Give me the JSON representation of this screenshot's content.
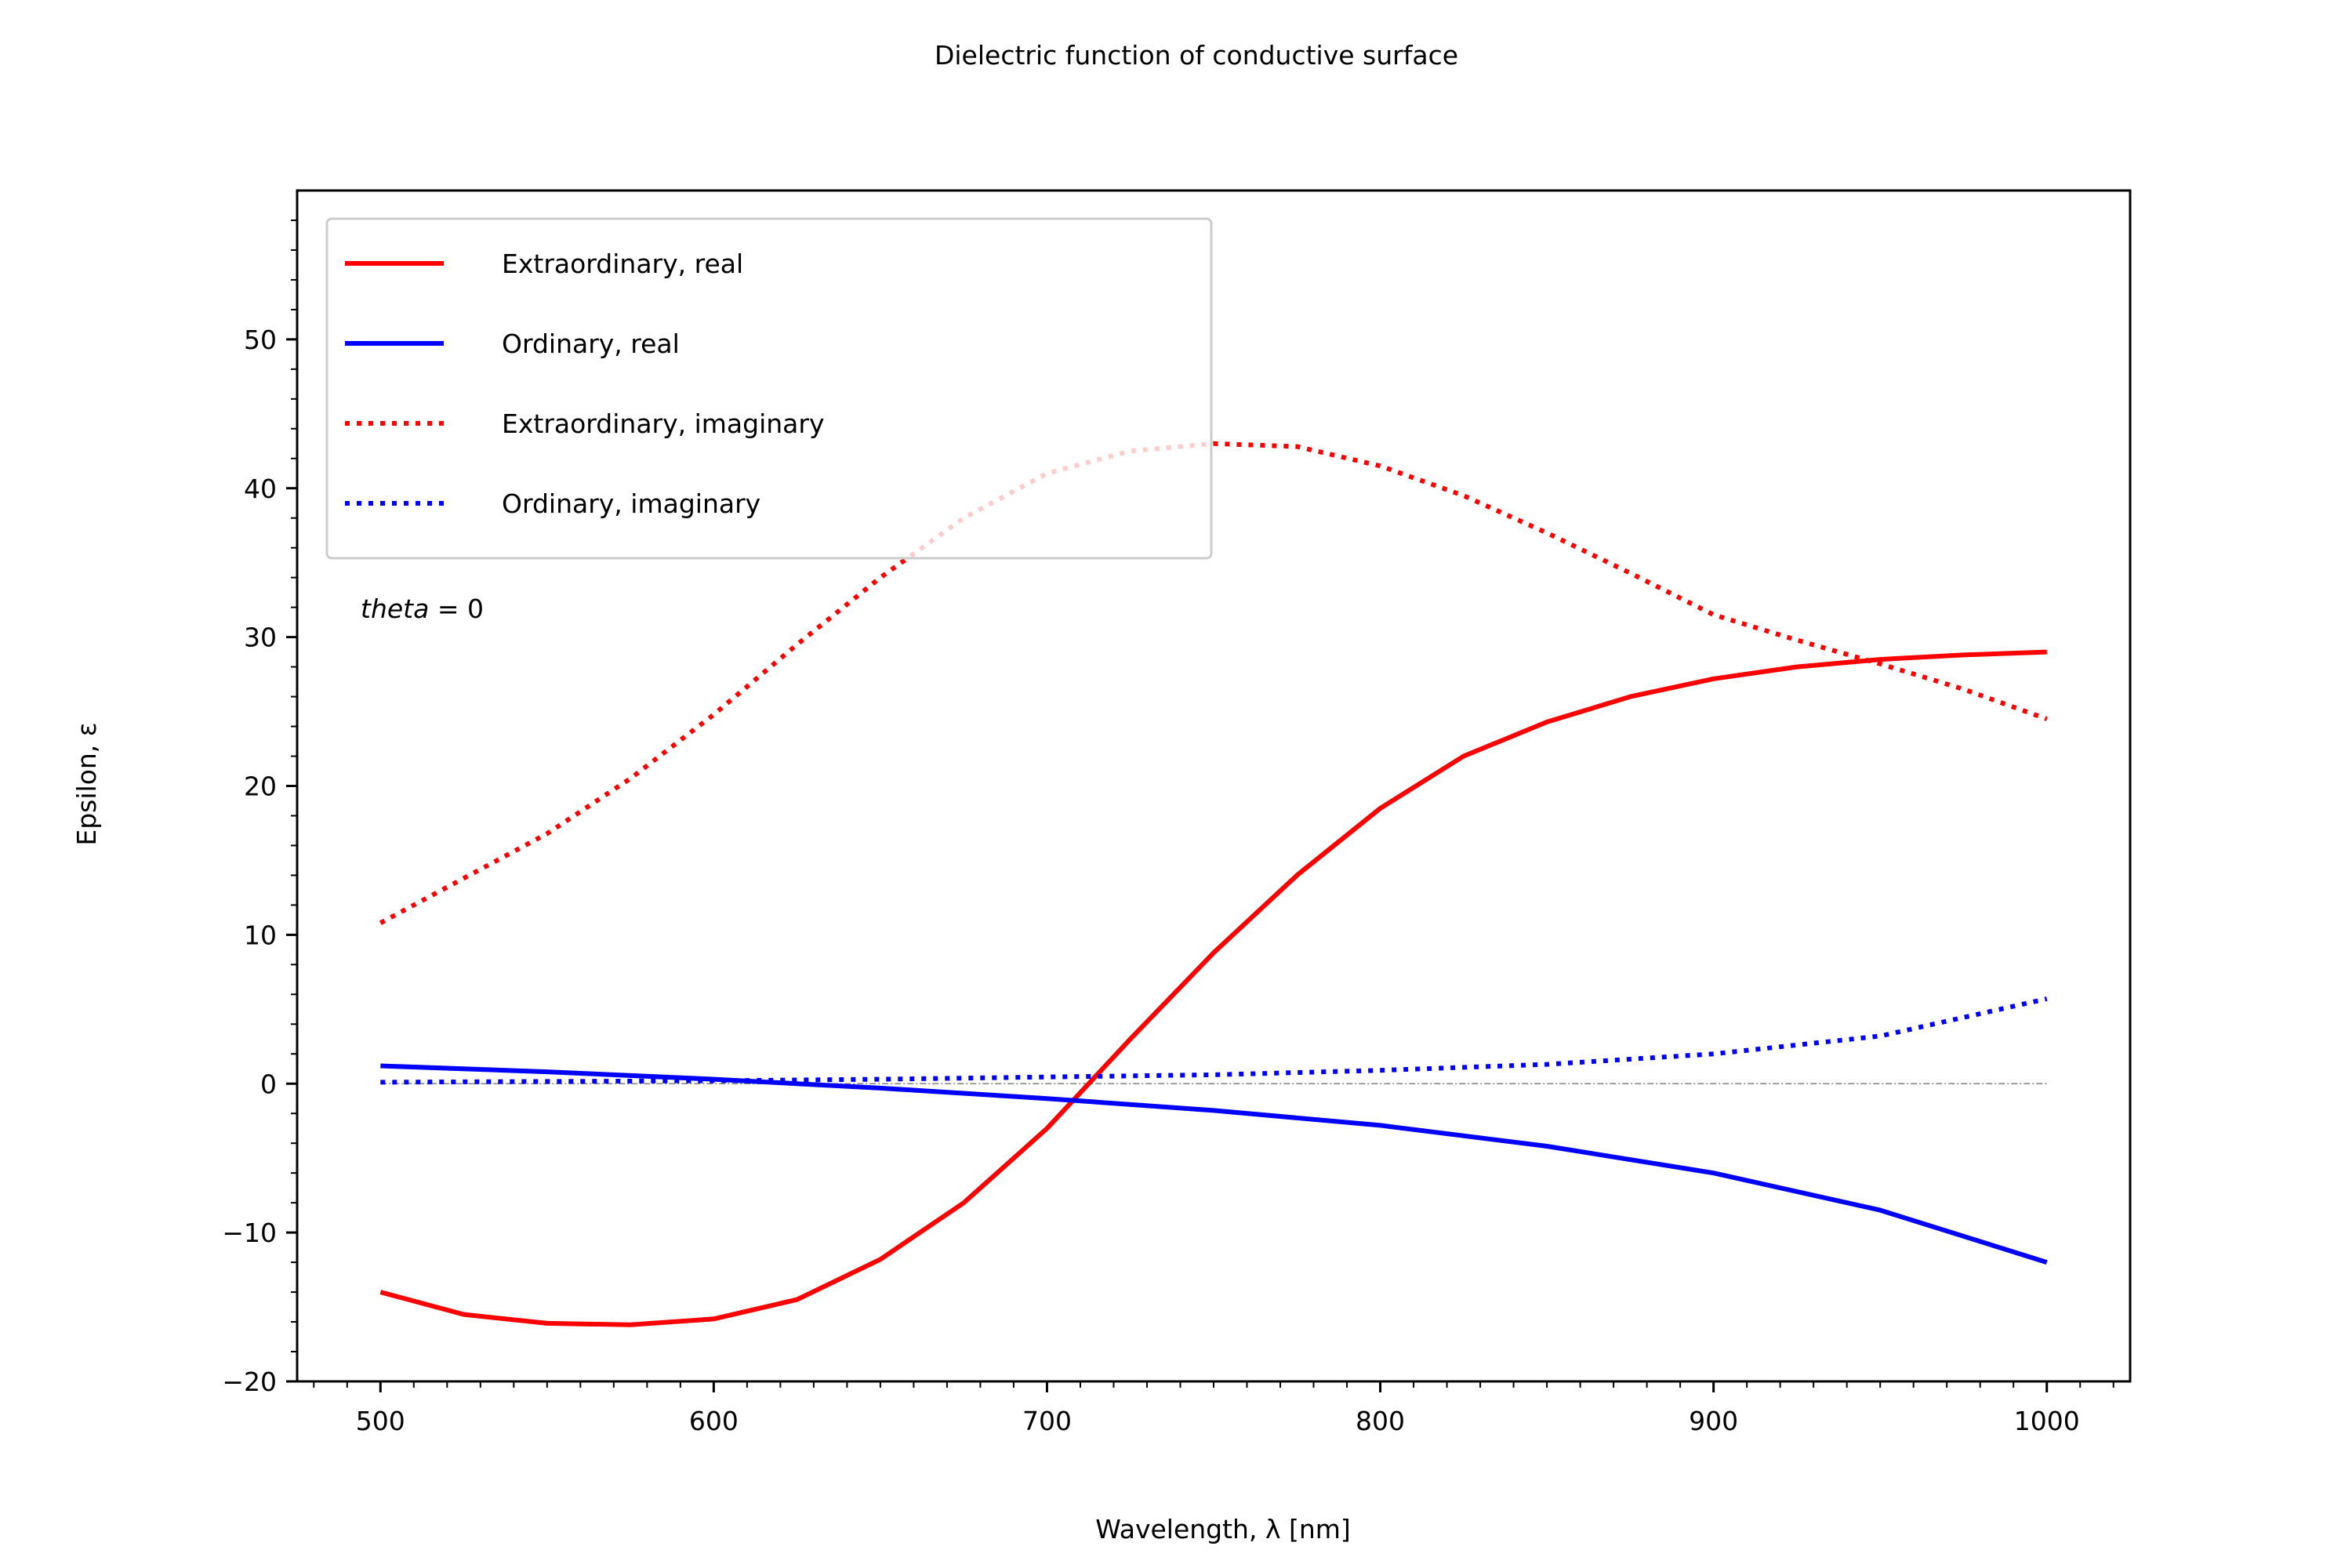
{
  "chart_data": {
    "type": "line",
    "title": "Dielectric function of conductive surface",
    "xlabel": "Wavelength, λ [nm]",
    "ylabel": "Epsilon, ε",
    "xlim": [
      475,
      1025
    ],
    "ylim": [
      -20,
      60
    ],
    "xticks": [
      500,
      600,
      700,
      800,
      900,
      1000
    ],
    "yticks": [
      -20,
      -10,
      0,
      10,
      20,
      30,
      40,
      50
    ],
    "ytick_labels": [
      "−20",
      "−10",
      "0",
      "10",
      "20",
      "30",
      "40",
      "50"
    ],
    "grid": false,
    "legend_position": "top-left",
    "annotation": {
      "italic": "theta",
      "rest": " = 0"
    },
    "zero_line": true,
    "series": [
      {
        "name": "Extraordinary, real",
        "color": "#ff0000",
        "style": "solid",
        "x": [
          500,
          525,
          550,
          575,
          600,
          625,
          650,
          675,
          700,
          725,
          750,
          775,
          800,
          825,
          850,
          875,
          900,
          925,
          950,
          975,
          1000
        ],
        "y": [
          -14.0,
          -15.5,
          -16.1,
          -16.2,
          -15.8,
          -14.5,
          -11.8,
          -8.0,
          -3.0,
          3.0,
          8.8,
          14.0,
          18.5,
          22.0,
          24.3,
          26.0,
          27.2,
          28.0,
          28.5,
          28.8,
          29.0
        ]
      },
      {
        "name": "Ordinary, real",
        "color": "#0000ff",
        "style": "solid",
        "x": [
          500,
          550,
          600,
          650,
          700,
          750,
          800,
          850,
          900,
          950,
          1000
        ],
        "y": [
          1.2,
          0.8,
          0.3,
          -0.3,
          -1.0,
          -1.8,
          -2.8,
          -4.2,
          -6.0,
          -8.5,
          -12.0
        ]
      },
      {
        "name": "Extraordinary, imaginary",
        "color": "#ff0000",
        "style": "dotted",
        "x": [
          500,
          525,
          550,
          575,
          600,
          625,
          650,
          675,
          700,
          725,
          750,
          775,
          800,
          825,
          850,
          875,
          900,
          925,
          950,
          975,
          1000
        ],
        "y": [
          10.8,
          13.8,
          16.8,
          20.5,
          24.8,
          29.5,
          34.0,
          38.0,
          41.0,
          42.5,
          43.0,
          42.8,
          41.5,
          39.5,
          37.0,
          34.3,
          31.5,
          29.8,
          28.2,
          26.5,
          24.5
        ]
      },
      {
        "name": "Ordinary, imaginary",
        "color": "#0000ff",
        "style": "dotted",
        "x": [
          500,
          550,
          600,
          650,
          700,
          750,
          800,
          850,
          900,
          950,
          1000
        ],
        "y": [
          0.1,
          0.15,
          0.2,
          0.3,
          0.45,
          0.6,
          0.9,
          1.3,
          2.0,
          3.2,
          5.7
        ]
      }
    ]
  }
}
